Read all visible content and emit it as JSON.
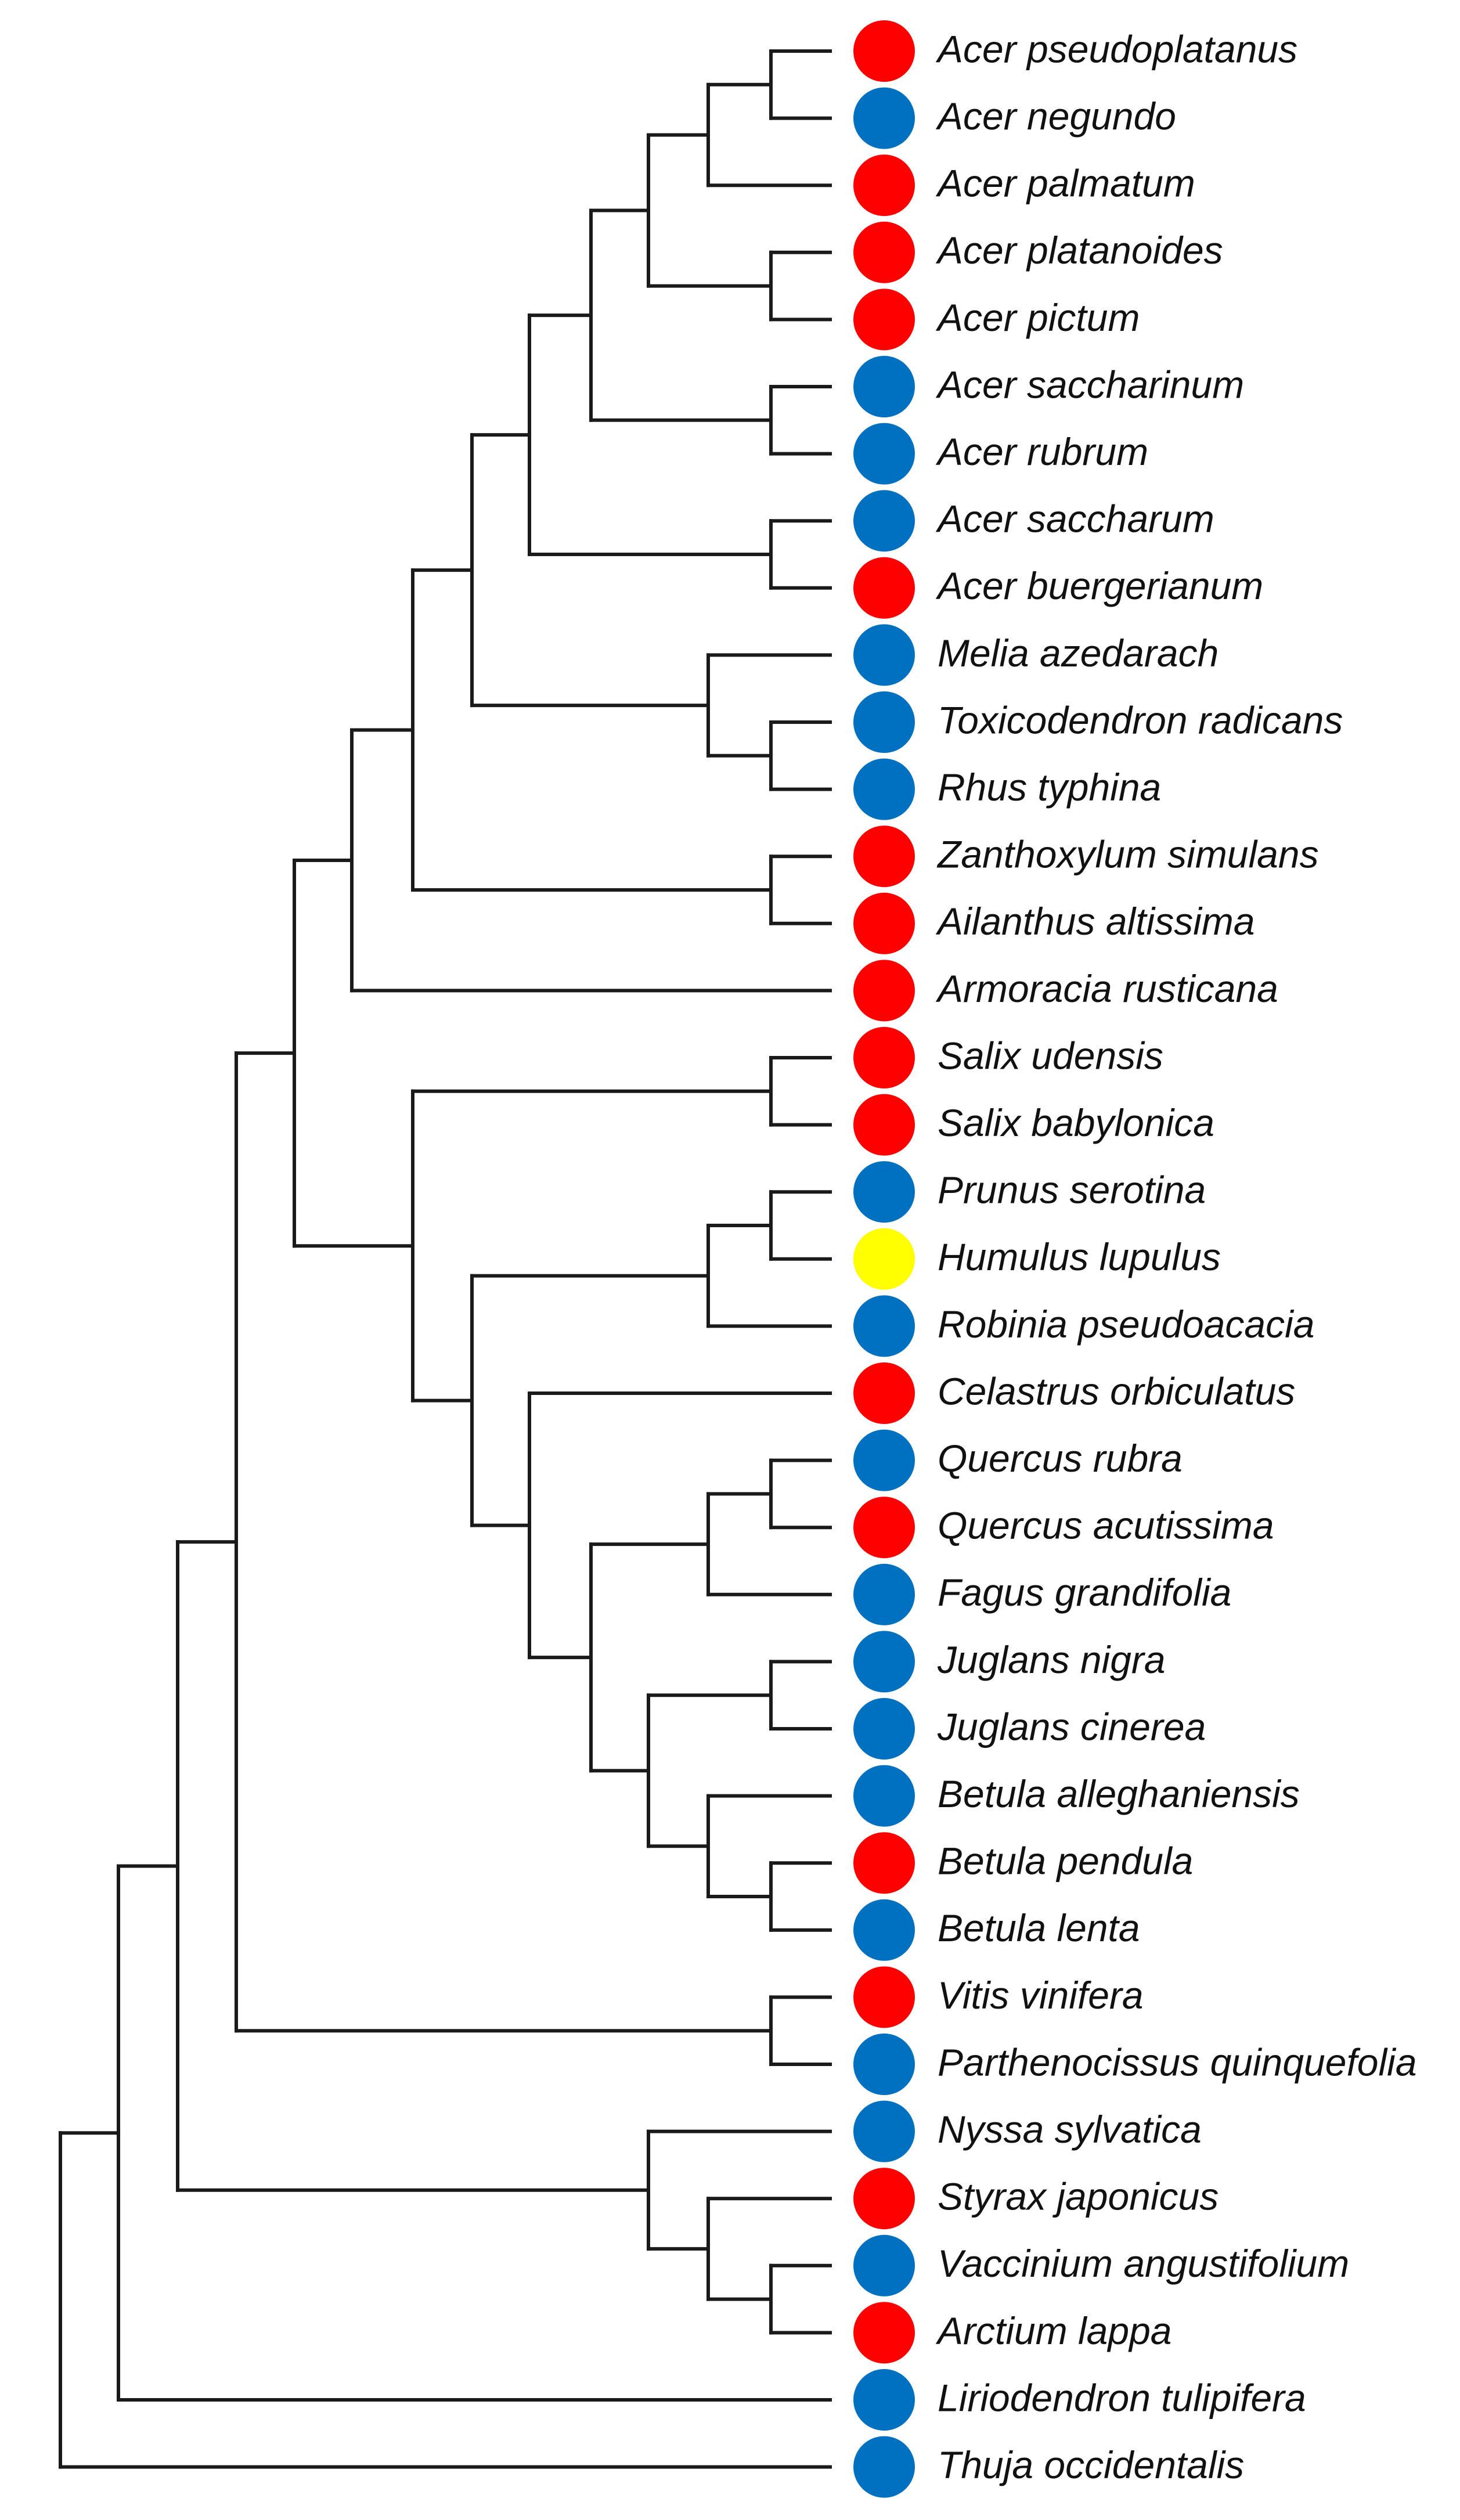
{
  "diagram": {
    "type": "phylogenetic-tree",
    "status_colors": {
      "red": "#ff0000",
      "blue": "#0070c0",
      "yellow": "#ffff00"
    },
    "taxa": [
      {
        "name": "Acer pseudoplatanus",
        "status": "red"
      },
      {
        "name": "Acer negundo",
        "status": "blue"
      },
      {
        "name": "Acer palmatum",
        "status": "red"
      },
      {
        "name": "Acer platanoides",
        "status": "red"
      },
      {
        "name": "Acer pictum",
        "status": "red"
      },
      {
        "name": "Acer saccharinum",
        "status": "blue"
      },
      {
        "name": "Acer rubrum",
        "status": "blue"
      },
      {
        "name": "Acer saccharum",
        "status": "blue"
      },
      {
        "name": "Acer buergerianum",
        "status": "red"
      },
      {
        "name": "Melia azedarach",
        "status": "blue"
      },
      {
        "name": "Toxicodendron radicans",
        "status": "blue"
      },
      {
        "name": "Rhus typhina",
        "status": "blue"
      },
      {
        "name": "Zanthoxylum simulans",
        "status": "red"
      },
      {
        "name": "Ailanthus altissima",
        "status": "red"
      },
      {
        "name": "Armoracia rusticana",
        "status": "red"
      },
      {
        "name": "Salix udensis",
        "status": "red"
      },
      {
        "name": "Salix babylonica",
        "status": "red"
      },
      {
        "name": "Prunus serotina",
        "status": "blue"
      },
      {
        "name": "Humulus lupulus",
        "status": "yellow"
      },
      {
        "name": "Robinia pseudoacacia",
        "status": "blue"
      },
      {
        "name": "Celastrus orbiculatus",
        "status": "red"
      },
      {
        "name": "Quercus rubra",
        "status": "blue"
      },
      {
        "name": "Quercus acutissima",
        "status": "red"
      },
      {
        "name": "Fagus grandifolia",
        "status": "blue"
      },
      {
        "name": "Juglans nigra",
        "status": "blue"
      },
      {
        "name": "Juglans cinerea",
        "status": "blue"
      },
      {
        "name": "Betula alleghaniensis",
        "status": "blue"
      },
      {
        "name": "Betula pendula",
        "status": "red"
      },
      {
        "name": "Betula lenta",
        "status": "blue"
      },
      {
        "name": "Vitis vinifera",
        "status": "red"
      },
      {
        "name": "Parthenocissus quinquefolia",
        "status": "blue"
      },
      {
        "name": "Nyssa sylvatica",
        "status": "blue"
      },
      {
        "name": "Styrax japonicus",
        "status": "red"
      },
      {
        "name": "Vaccinium angustifolium",
        "status": "blue"
      },
      {
        "name": "Arctium lappa",
        "status": "red"
      },
      {
        "name": "Liriodendron tulipifera",
        "status": "blue"
      },
      {
        "name": "Thuja occidentalis",
        "status": "blue"
      }
    ],
    "topology": [
      [
        [
          [
            [
              [
                [
                  [
                    [
                      [
                        0,
                        1
                      ],
                      2
                    ],
                    [
                      3,
                      4
                    ]
                  ],
                  [
                    5,
                    6
                  ]
                ],
                [
                  7,
                  8
                ]
              ],
              [
                9,
                [
                  10,
                  11
                ]
              ]
            ],
            [
              12,
              13
            ]
          ],
          14
        ],
        [
          [
            15,
            16
          ],
          [
            [
              [
                17,
                18
              ],
              19
            ],
            [
              20,
              [
                [
                  [
                    21,
                    22
                  ],
                  23
                ],
                [
                  [
                    24,
                    25
                  ],
                  [
                    26,
                    [
                      27,
                      28
                    ]
                  ]
                ]
              ]
            ]
          ]
        ]
      ],
      [
        29,
        30
      ]
    ]
  }
}
